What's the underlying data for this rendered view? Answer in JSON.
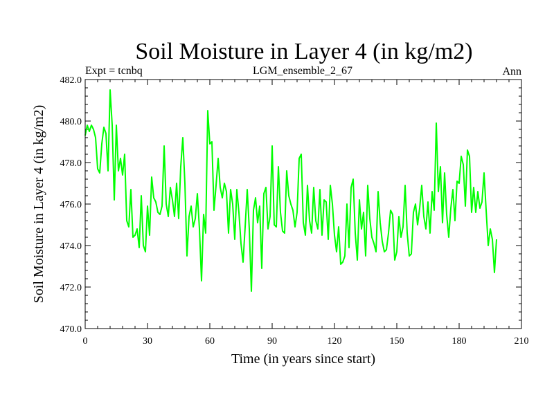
{
  "chart_data": {
    "type": "line",
    "title": "Soil Moisture in Layer 4 (in kg/m2)",
    "subtitle_left": "Expt = tcnbq",
    "subtitle_center": "LGM_ensemble_2_67",
    "subtitle_right": "Ann",
    "xlabel": "Time (in years since start)",
    "ylabel": "Soil Moisture in Layer 4 (in kg/m2)",
    "xlim": [
      0,
      210
    ],
    "ylim": [
      470,
      482
    ],
    "xticks": [
      0,
      30,
      60,
      90,
      120,
      150,
      180,
      210
    ],
    "xtick_labels": [
      "0",
      "30",
      "60",
      "90",
      "120",
      "150",
      "180",
      "210"
    ],
    "yticks": [
      470,
      472,
      474,
      476,
      478,
      480,
      482
    ],
    "ytick_labels": [
      "470.0",
      "472.0",
      "474.0",
      "476.0",
      "478.0",
      "480.0",
      "482.0"
    ],
    "grid": false,
    "line_color": "#00ff00",
    "series": [
      {
        "name": "tcnbq",
        "values": [
          479.3,
          479.8,
          479.5,
          479.8,
          479.6,
          479.2,
          477.7,
          477.5,
          478.9,
          479.7,
          479.4,
          477.6,
          481.5,
          479.8,
          476.2,
          479.8,
          477.6,
          478.2,
          477.4,
          478.4,
          475.2,
          474.9,
          476.7,
          474.4,
          474.5,
          474.8,
          473.9,
          476.4,
          474.0,
          473.7,
          475.9,
          474.5,
          477.3,
          476.3,
          476.1,
          475.6,
          475.5,
          475.9,
          478.8,
          476.0,
          475.4,
          476.8,
          476.2,
          475.4,
          477.0,
          475.3,
          477.8,
          479.2,
          477.0,
          473.5,
          475.4,
          475.9,
          474.9,
          475.3,
          476.5,
          474.8,
          472.3,
          475.5,
          474.6,
          480.5,
          478.9,
          479.0,
          475.7,
          476.9,
          478.2,
          476.8,
          476.3,
          477.0,
          476.6,
          474.6,
          476.7,
          476.0,
          474.3,
          476.7,
          475.6,
          474.1,
          473.2,
          474.9,
          476.7,
          474.8,
          471.8,
          475.7,
          476.3,
          475.1,
          475.9,
          472.9,
          476.5,
          476.8,
          474.8,
          475.4,
          478.8,
          475.0,
          474.9,
          477.8,
          475.6,
          474.7,
          474.6,
          477.6,
          476.4,
          476.0,
          475.7,
          474.9,
          475.6,
          478.2,
          478.4,
          475.1,
          474.5,
          476.9,
          475.2,
          474.6,
          476.8,
          475.2,
          474.8,
          476.7,
          474.5,
          476.2,
          476.1,
          474.3,
          476.9,
          476.0,
          474.5,
          473.7,
          474.9,
          473.1,
          473.2,
          473.5,
          476.0,
          473.9,
          476.8,
          477.2,
          474.6,
          473.3,
          476.2,
          474.8,
          475.6,
          473.5,
          476.9,
          475.3,
          474.4,
          474.1,
          473.7,
          476.6,
          475.1,
          474.2,
          473.7,
          473.8,
          474.6,
          475.7,
          475.5,
          473.3,
          473.7,
          475.4,
          474.4,
          474.9,
          476.9,
          474.6,
          473.5,
          473.6,
          475.6,
          476.0,
          475.0,
          475.8,
          476.9,
          475.4,
          474.8,
          476.1,
          474.6,
          476.6,
          475.7,
          479.9,
          476.6,
          477.8,
          475.1,
          477.5,
          475.5,
          474.4,
          475.8,
          476.7,
          475.2,
          477.1,
          477.0,
          478.3,
          477.9,
          475.9,
          478.6,
          478.3,
          475.6,
          476.8,
          475.6,
          476.6,
          475.8,
          476.1,
          477.5,
          475.7,
          474.0,
          474.8,
          474.3,
          472.7,
          474.3
        ]
      }
    ]
  }
}
